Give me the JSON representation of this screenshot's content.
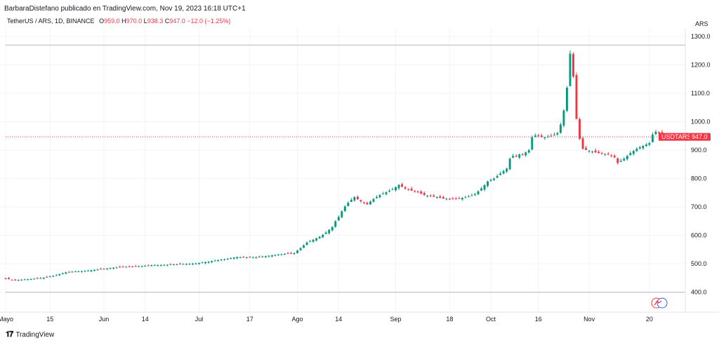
{
  "header": {
    "publisher": "BarbaraDistefano publicado en TradingView.com, Nov 19, 2023 16:18 UTC+1"
  },
  "legend": {
    "symbol": "TetherUS / ARS, 1D, BINANCE",
    "o_label": "O",
    "o": "959.0",
    "h_label": "H",
    "h": "970.0",
    "l_label": "L",
    "l": "938.3",
    "c_label": "C",
    "c": "947.0",
    "chg": "−12.0 (−1.25%)"
  },
  "axis": {
    "currency": "ARS",
    "current_label": "USDTARS",
    "current_price": "947.0"
  },
  "footer": {
    "brand": "TradingView"
  },
  "colors": {
    "up": "#089981",
    "down": "#f23645",
    "grid": "#f0f3fa"
  },
  "chart_data": {
    "type": "candlestick",
    "y_ticks": [
      400,
      500,
      600,
      700,
      800,
      900,
      1000,
      1100,
      1200,
      1300
    ],
    "y_tick_labels": [
      "400.0",
      "500.0",
      "600.0",
      "700.0",
      "800.0",
      "900.0",
      "1000.0",
      "1100.0",
      "1200.0",
      "1300.0"
    ],
    "ylim": [
      330,
      1330
    ],
    "x_labels": [
      {
        "label": "Mayo",
        "day": 0
      },
      {
        "label": "15",
        "day": 14
      },
      {
        "label": "Jun",
        "day": 31
      },
      {
        "label": "14",
        "day": 44
      },
      {
        "label": "Jul",
        "day": 61
      },
      {
        "label": "17",
        "day": 77
      },
      {
        "label": "Ago",
        "day": 92
      },
      {
        "label": "14",
        "day": 105
      },
      {
        "label": "Sep",
        "day": 123
      },
      {
        "label": "18",
        "day": 140
      },
      {
        "label": "Oct",
        "day": 153
      },
      {
        "label": "16",
        "day": 168
      },
      {
        "label": "Nov",
        "day": 184
      },
      {
        "label": "20",
        "day": 203
      }
    ],
    "current_price": 947.0,
    "ref_high": 1270,
    "ref_low": 400,
    "close_series": [
      [
        0,
        448
      ],
      [
        3,
        442
      ],
      [
        6,
        445
      ],
      [
        10,
        448
      ],
      [
        13,
        453
      ],
      [
        16,
        460
      ],
      [
        19,
        470
      ],
      [
        22,
        473
      ],
      [
        25,
        475
      ],
      [
        28,
        479
      ],
      [
        31,
        482
      ],
      [
        34,
        486
      ],
      [
        37,
        489
      ],
      [
        40,
        490
      ],
      [
        43,
        492
      ],
      [
        46,
        495
      ],
      [
        49,
        496
      ],
      [
        52,
        497
      ],
      [
        55,
        499
      ],
      [
        58,
        500
      ],
      [
        61,
        503
      ],
      [
        64,
        508
      ],
      [
        67,
        513
      ],
      [
        70,
        518
      ],
      [
        73,
        524
      ],
      [
        76,
        523
      ],
      [
        79,
        524
      ],
      [
        82,
        527
      ],
      [
        85,
        531
      ],
      [
        88,
        535
      ],
      [
        91,
        538
      ],
      [
        93,
        555
      ],
      [
        95,
        575
      ],
      [
        97,
        585
      ],
      [
        99,
        595
      ],
      [
        101,
        610
      ],
      [
        103,
        630
      ],
      [
        104,
        650
      ],
      [
        105,
        665
      ],
      [
        106,
        685
      ],
      [
        107,
        702
      ],
      [
        108,
        715
      ],
      [
        110,
        735
      ],
      [
        112,
        720
      ],
      [
        114,
        710
      ],
      [
        116,
        728
      ],
      [
        118,
        742
      ],
      [
        120,
        752
      ],
      [
        122,
        762
      ],
      [
        124,
        778
      ],
      [
        126,
        765
      ],
      [
        128,
        758
      ],
      [
        130,
        752
      ],
      [
        132,
        742
      ],
      [
        134,
        738
      ],
      [
        136,
        735
      ],
      [
        138,
        730
      ],
      [
        140,
        728
      ],
      [
        142,
        728
      ],
      [
        144,
        732
      ],
      [
        146,
        737
      ],
      [
        148,
        745
      ],
      [
        150,
        765
      ],
      [
        152,
        790
      ],
      [
        154,
        800
      ],
      [
        156,
        818
      ],
      [
        158,
        835
      ],
      [
        159,
        870
      ],
      [
        160,
        880
      ],
      [
        161,
        878
      ],
      [
        162,
        885
      ],
      [
        163,
        885
      ],
      [
        165,
        900
      ],
      [
        166,
        945
      ],
      [
        167,
        952
      ],
      [
        168,
        950
      ],
      [
        170,
        945
      ],
      [
        172,
        950
      ],
      [
        174,
        960
      ],
      [
        175,
        990
      ],
      [
        176,
        1040
      ],
      [
        177,
        1120
      ],
      [
        178,
        1240
      ],
      [
        179,
        1160
      ],
      [
        180,
        1010
      ],
      [
        181,
        940
      ],
      [
        182,
        905
      ],
      [
        184,
        898
      ],
      [
        186,
        892
      ],
      [
        188,
        888
      ],
      [
        190,
        885
      ],
      [
        192,
        875
      ],
      [
        193,
        855
      ],
      [
        195,
        870
      ],
      [
        197,
        890
      ],
      [
        199,
        905
      ],
      [
        201,
        915
      ],
      [
        203,
        925
      ],
      [
        204,
        955
      ],
      [
        205,
        965
      ],
      [
        206,
        960
      ],
      [
        207,
        947
      ]
    ],
    "x_domain": [
      0,
      209
    ]
  }
}
